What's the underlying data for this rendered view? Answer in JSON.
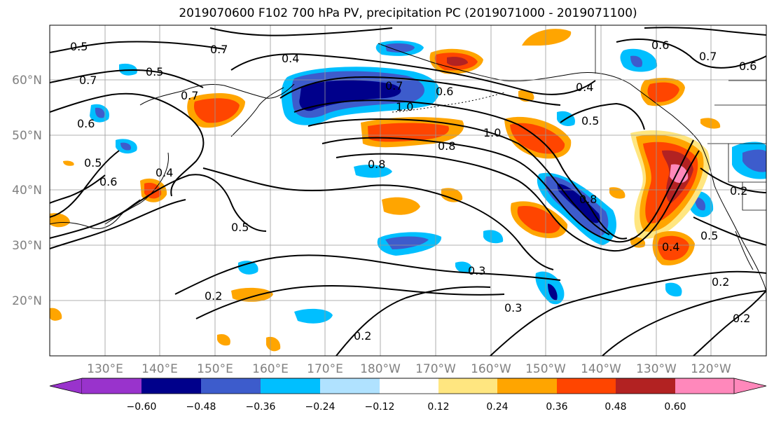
{
  "title": "2019070600 F102 700 hPa PV, precipitation PC (2019071000 - 2019071100)",
  "map": {
    "lat_labels": [
      "60°N",
      "50°N",
      "40°N",
      "30°N",
      "20°N"
    ],
    "lon_labels": [
      "130°E",
      "140°E",
      "150°E",
      "160°E",
      "170°E",
      "180°W",
      "170°W",
      "160°W",
      "150°W",
      "140°W",
      "130°W",
      "120°W"
    ],
    "contour_labels": [
      "0.5",
      "0.7",
      "0.4",
      "0.5",
      "0.7",
      "0.7",
      "0.6",
      "0.6",
      "0.7",
      "0.6",
      "0.7",
      "0.6",
      "0.4",
      "1.0",
      "1.0",
      "0.8",
      "0.8",
      "0.5",
      "0.5",
      "0.6",
      "0.4",
      "0.8",
      "0.5",
      "0.2",
      "0.4",
      "0.5",
      "0.3",
      "0.3",
      "0.2",
      "0.2",
      "0.2",
      "0.2"
    ],
    "colors": {
      "contour": "#000000",
      "grid": "#999999",
      "coast": "#000000"
    }
  },
  "colorbar": {
    "ticks": [
      "−0.60",
      "−0.48",
      "−0.36",
      "−0.24",
      "−0.12",
      "0.12",
      "0.24",
      "0.36",
      "0.48",
      "0.60"
    ],
    "colors": [
      "#9933cc",
      "#00008b",
      "#3d5ccc",
      "#00bfff",
      "#b0e2ff",
      "#ffffff",
      "#ffe680",
      "#ffa500",
      "#ff4500",
      "#b22222",
      "#ff88bb"
    ]
  }
}
